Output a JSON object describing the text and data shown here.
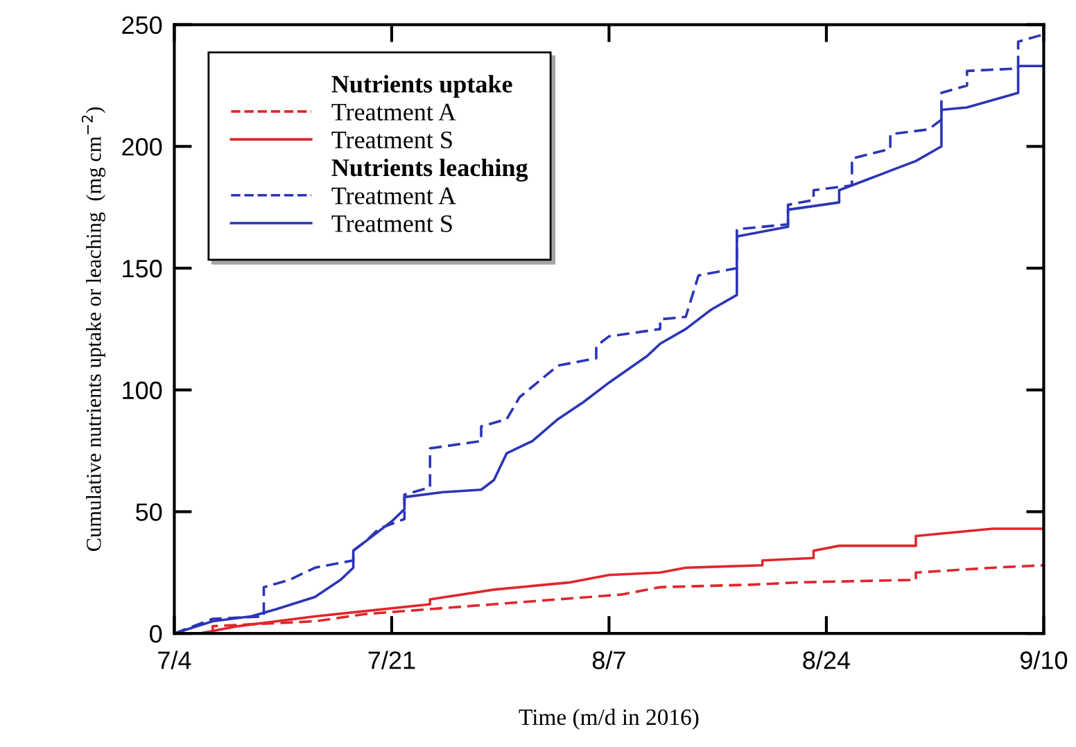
{
  "chart_data": {
    "type": "line",
    "xlabel": "Time (m/d in 2016)",
    "ylabel": "Cumulative nutrients uptake or leaching  (mg cm$^{−2}$)",
    "annotations": [
      "Nutrients uptake",
      "Nutrients leaching"
    ],
    "xlim": [
      "2016-07-04",
      "2016-09-10"
    ],
    "xticks": [
      {
        "value": "2016-07-04",
        "label": "7/4"
      },
      {
        "value": "2016-07-21",
        "label": "7/21"
      },
      {
        "value": "2016-08-07",
        "label": "8/7"
      },
      {
        "value": "2016-08-24",
        "label": "8/24"
      },
      {
        "value": "2016-09-10",
        "label": "9/10"
      }
    ],
    "ylim": [
      0,
      250
    ],
    "yticks": [
      0,
      50,
      100,
      150,
      200,
      250
    ],
    "grid": false,
    "legend": "top left",
    "marker": "none",
    "series": [
      {
        "name": "Treatment A",
        "color": "#e0262b",
        "line_style": "dashed",
        "x": [
          "2016-07-07",
          "2016-07-07",
          "2016-07-15",
          "2016-07-19",
          "2016-07-29",
          "2016-08-08",
          "2016-08-11",
          "2016-08-18",
          "2016-08-22",
          "2016-08-31",
          "2016-08-31",
          "2016-09-06",
          "2016-09-10"
        ],
        "values": [
          0,
          3,
          5,
          8,
          12,
          16,
          19,
          20,
          21,
          22,
          25,
          27,
          28
        ]
      },
      {
        "name": "Treatment S",
        "color": "#e0262b",
        "line_style": "solid",
        "x": [
          "2016-07-04",
          "2016-07-06",
          "2016-07-09",
          "2016-07-15",
          "2016-07-24",
          "2016-07-24",
          "2016-07-29",
          "2016-08-04",
          "2016-08-07",
          "2016-08-11",
          "2016-08-13",
          "2016-08-19",
          "2016-08-19",
          "2016-08-23",
          "2016-08-23",
          "2016-08-25",
          "2016-08-31",
          "2016-08-31",
          "2016-09-06",
          "2016-09-10"
        ],
        "values": [
          0,
          0,
          3,
          7,
          12,
          14,
          18,
          21,
          24,
          25,
          27,
          28,
          30,
          31,
          34,
          36,
          36,
          40,
          43,
          43
        ]
      },
      {
        "name": "Treatment A",
        "color": "#2b35b5",
        "line_style": "dashed",
        "x": [
          "2016-07-04",
          "2016-07-07",
          "2016-07-11",
          "2016-07-11",
          "2016-07-13",
          "2016-07-15",
          "2016-07-18",
          "2016-07-18",
          "2016-07-19",
          "2016-07-20",
          "2016-07-21",
          "2016-07-22",
          "2016-07-22",
          "2016-07-24",
          "2016-07-24",
          "2016-07-28",
          "2016-07-28",
          "2016-07-30",
          "2016-07-31",
          "2016-08-03",
          "2016-08-06",
          "2016-08-06",
          "2016-08-07",
          "2016-08-11",
          "2016-08-11",
          "2016-08-13",
          "2016-08-14",
          "2016-08-17",
          "2016-08-17",
          "2016-08-21",
          "2016-08-21",
          "2016-08-23",
          "2016-08-23",
          "2016-08-26",
          "2016-08-26",
          "2016-08-29",
          "2016-08-29",
          "2016-09-01",
          "2016-09-02",
          "2016-09-02",
          "2016-09-04",
          "2016-09-04",
          "2016-09-08",
          "2016-09-08",
          "2016-09-10"
        ],
        "values": [
          0,
          6,
          7,
          19,
          22,
          27,
          30,
          34,
          38,
          43,
          45,
          47,
          57,
          60,
          76,
          79,
          85,
          88,
          97,
          110,
          113,
          118,
          122,
          125,
          129,
          130,
          147,
          150,
          166,
          168,
          176,
          178,
          182,
          184,
          195,
          199,
          205,
          207,
          211,
          222,
          225,
          231,
          232,
          243,
          246
        ]
      },
      {
        "name": "Treatment S",
        "color": "#2b35b5",
        "line_style": "solid",
        "x": [
          "2016-07-04",
          "2016-07-07",
          "2016-07-10",
          "2016-07-12",
          "2016-07-15",
          "2016-07-17",
          "2016-07-18",
          "2016-07-18",
          "2016-07-19",
          "2016-07-21",
          "2016-07-22",
          "2016-07-22",
          "2016-07-25",
          "2016-07-28",
          "2016-07-29",
          "2016-07-30",
          "2016-08-01",
          "2016-08-03",
          "2016-08-05",
          "2016-08-07",
          "2016-08-10",
          "2016-08-11",
          "2016-08-13",
          "2016-08-15",
          "2016-08-17",
          "2016-08-17",
          "2016-08-21",
          "2016-08-21",
          "2016-08-25",
          "2016-08-25",
          "2016-08-27",
          "2016-08-29",
          "2016-08-31",
          "2016-09-02",
          "2016-09-02",
          "2016-09-04",
          "2016-09-08",
          "2016-09-08",
          "2016-09-10"
        ],
        "values": [
          0,
          5,
          7,
          10,
          15,
          22,
          27,
          34,
          38,
          46,
          51,
          56,
          58,
          59,
          63,
          74,
          79,
          88,
          95,
          103,
          114,
          119,
          125,
          133,
          139,
          163,
          167,
          174,
          177,
          182,
          186,
          190,
          194,
          200,
          215,
          216,
          222,
          233,
          233
        ]
      }
    ]
  }
}
